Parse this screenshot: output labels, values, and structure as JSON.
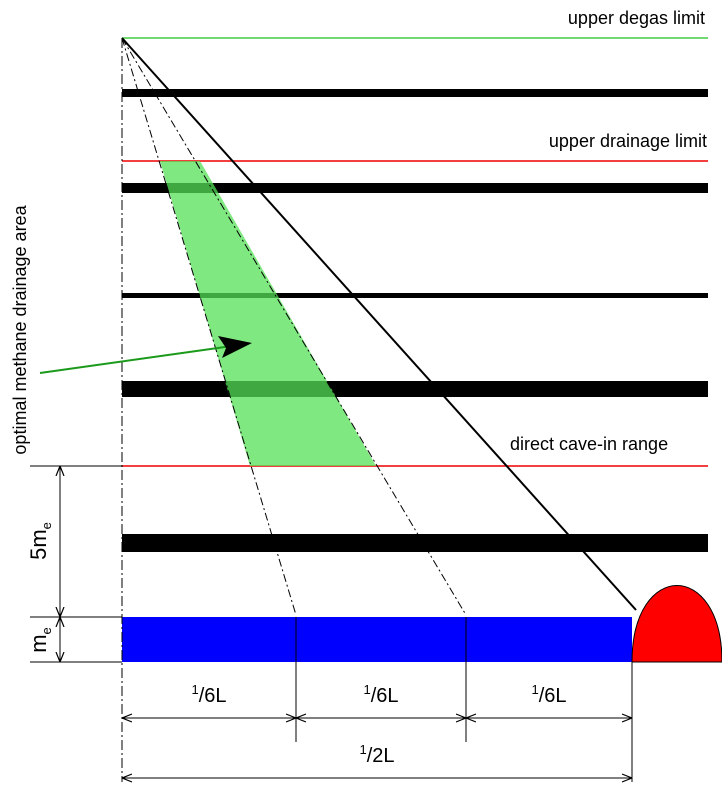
{
  "labels": {
    "upper_degas_limit": "upper degas limit",
    "upper_drainage_limit": "upper drainage limit",
    "direct_cave_in_range": "direct cave-in range",
    "optimal_area": "optimal methane drainage area"
  },
  "heights": [
    {
      "main": "5m",
      "sub": "e"
    },
    {
      "main": "m",
      "sub": "e"
    }
  ],
  "dimensions": [
    {
      "sup": "1",
      "rest": "/6L"
    },
    {
      "sup": "1",
      "rest": "/6L"
    },
    {
      "sup": "1",
      "rest": "/6L"
    },
    {
      "sup": "1",
      "rest": "/2L"
    }
  ]
}
